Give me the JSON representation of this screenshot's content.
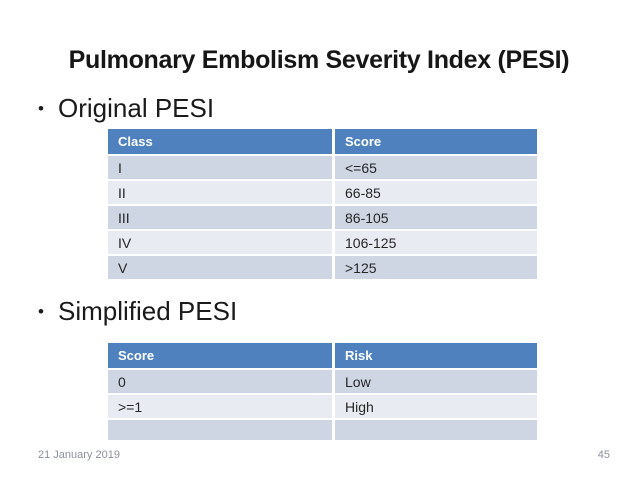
{
  "title": "Pulmonary Embolism Severity Index (PESI)",
  "bullets": [
    {
      "marker": "•",
      "label": "Original PESI"
    },
    {
      "marker": "•",
      "label": "Simplified PESI"
    }
  ],
  "tables": [
    {
      "name": "original_pesi",
      "columns": [
        "Class",
        "Score"
      ],
      "rows": [
        [
          "I",
          "<=65"
        ],
        [
          "II",
          "66-85"
        ],
        [
          "III",
          "86-105"
        ],
        [
          "IV",
          "106-125"
        ],
        [
          "V",
          ">125"
        ]
      ]
    },
    {
      "name": "simplified_pesi",
      "columns": [
        "Score",
        "Risk"
      ],
      "rows": [
        [
          "0",
          "Low"
        ],
        [
          ">=1",
          "High"
        ],
        [
          "",
          ""
        ]
      ]
    }
  ],
  "footer": {
    "date": "21 January 2019",
    "page_number": "45"
  },
  "colors": {
    "table_header_blue": "#4E81BD",
    "row_band_dark": "#CED5E3",
    "row_band_light": "#E9EBF2",
    "footer_gray": "#8B909B",
    "title_text": "#161616"
  }
}
